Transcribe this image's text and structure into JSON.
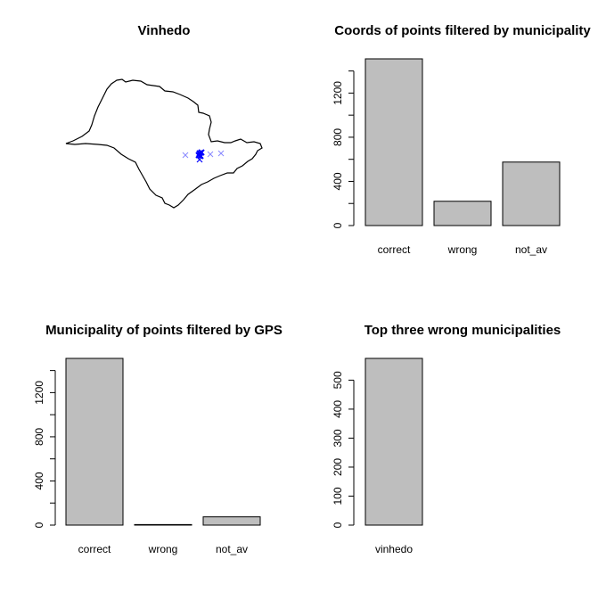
{
  "chart_data": [
    {
      "type": "scatter",
      "title": "Vinhedo",
      "description_map": "outline of São Paulo state with cross markers",
      "marker": "x",
      "colors": {
        "highlight": "#0000ff",
        "faded": "#8888ff",
        "outline": "#000000"
      }
    },
    {
      "type": "bar",
      "title": "Coords of points filtered by municipality",
      "categories": [
        "correct",
        "wrong",
        "not_av"
      ],
      "values": [
        1510,
        220,
        575
      ],
      "ylim": [
        0,
        1510
      ],
      "yticks": [
        0,
        400,
        800,
        1200
      ],
      "bar_color": "#bebebe"
    },
    {
      "type": "bar",
      "title": "Municipality of points filtered by GPS",
      "categories": [
        "correct",
        "wrong",
        "not_av"
      ],
      "values": [
        1510,
        5,
        75
      ],
      "ylim": [
        0,
        1510
      ],
      "yticks": [
        0,
        400,
        800,
        1200
      ],
      "bar_color": "#bebebe"
    },
    {
      "type": "bar",
      "title": "Top three wrong municipalities",
      "categories": [
        "vinhedo"
      ],
      "values": [
        575
      ],
      "ylim": [
        0,
        575
      ],
      "yticks": [
        0,
        100,
        200,
        300,
        400,
        500
      ],
      "bar_color": "#bebebe"
    }
  ]
}
